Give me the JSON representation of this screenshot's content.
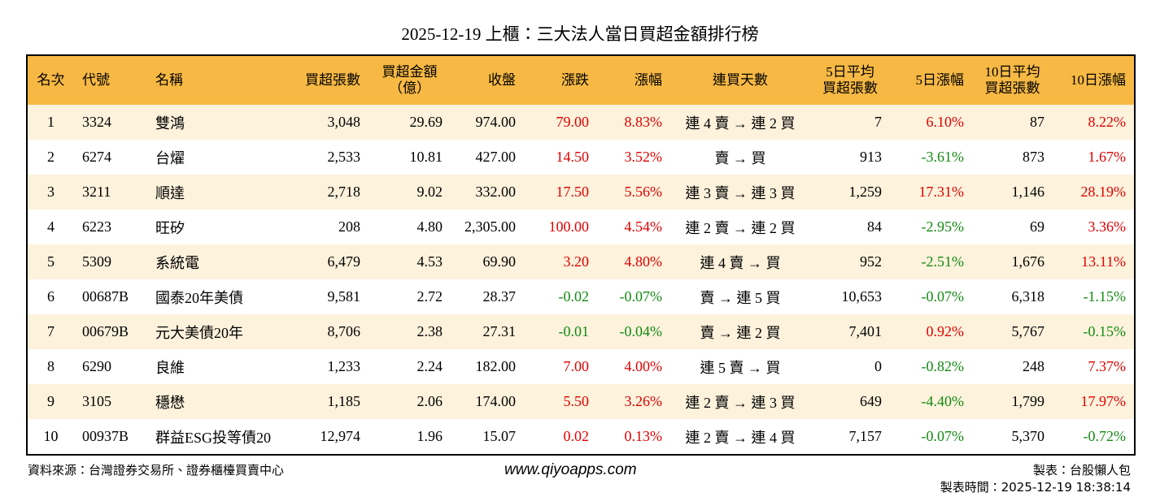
{
  "header": {
    "title": "2025-12-19 上櫃：三大法人當日買超金額排行榜"
  },
  "table": {
    "columns": [
      [
        "名次"
      ],
      [
        "代號"
      ],
      [
        "名稱"
      ],
      [
        "買超張數"
      ],
      [
        "買超金額",
        "（億）"
      ],
      [
        "收盤"
      ],
      [
        "漲跌"
      ],
      [
        "漲幅"
      ],
      [
        "連買天數"
      ],
      [
        "5日平均",
        "買超張數"
      ],
      [
        "5日漲幅"
      ],
      [
        "10日平均",
        "買超張數"
      ],
      [
        "10日漲幅"
      ]
    ],
    "rows": [
      [
        "1",
        "3324",
        "雙鴻",
        "3,048",
        "29.69",
        "974.00",
        "79.00",
        "8.83%",
        "連 4 賣 → 連 2 買",
        "7",
        "6.10%",
        "87",
        "8.22%"
      ],
      [
        "2",
        "6274",
        "台燿",
        "2,533",
        "10.81",
        "427.00",
        "14.50",
        "3.52%",
        "賣 → 買",
        "913",
        "-3.61%",
        "873",
        "1.67%"
      ],
      [
        "3",
        "3211",
        "順達",
        "2,718",
        "9.02",
        "332.00",
        "17.50",
        "5.56%",
        "連 3 賣 → 連 3 買",
        "1,259",
        "17.31%",
        "1,146",
        "28.19%"
      ],
      [
        "4",
        "6223",
        "旺矽",
        "208",
        "4.80",
        "2,305.00",
        "100.00",
        "4.54%",
        "連 2 賣 → 連 2 買",
        "84",
        "-2.95%",
        "69",
        "3.36%"
      ],
      [
        "5",
        "5309",
        "系統電",
        "6,479",
        "4.53",
        "69.90",
        "3.20",
        "4.80%",
        "連 4 賣 → 買",
        "952",
        "-2.51%",
        "1,676",
        "13.11%"
      ],
      [
        "6",
        "00687B",
        "國泰20年美債",
        "9,581",
        "2.72",
        "28.37",
        "-0.02",
        "-0.07%",
        "賣 → 連 5 買",
        "10,653",
        "-0.07%",
        "6,318",
        "-1.15%"
      ],
      [
        "7",
        "00679B",
        "元大美債20年",
        "8,706",
        "2.38",
        "27.31",
        "-0.01",
        "-0.04%",
        "賣 → 連 2 買",
        "7,401",
        "0.92%",
        "5,767",
        "-0.15%"
      ],
      [
        "8",
        "6290",
        "良維",
        "1,233",
        "2.24",
        "182.00",
        "7.00",
        "4.00%",
        "連 5 賣 → 買",
        "0",
        "-0.82%",
        "248",
        "7.37%"
      ],
      [
        "9",
        "3105",
        "穩懋",
        "1,185",
        "2.06",
        "174.00",
        "5.50",
        "3.26%",
        "連 2 賣 → 連 3 買",
        "649",
        "-4.40%",
        "1,799",
        "17.97%"
      ],
      [
        "10",
        "00937B",
        "群益ESG投等債20",
        "12,974",
        "1.96",
        "15.07",
        "0.02",
        "0.13%",
        "連 2 賣 → 連 4 買",
        "7,157",
        "-0.07%",
        "5,370",
        "-0.72%"
      ]
    ]
  },
  "footer": {
    "source": "資料來源：台灣證券交易所、證券櫃檯買賣中心",
    "website": "www.qiyoapps.com",
    "maker": "製表：台股懶人包",
    "time": "製表時間：2025-12-19 18:38:14"
  }
}
